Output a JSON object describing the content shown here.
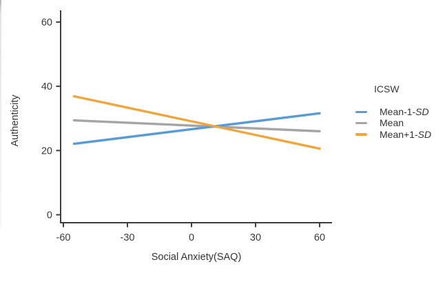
{
  "figure": {
    "x_axis_label": "Social Anxiety(SAQ)",
    "y_axis_label": "Authenticity"
  },
  "legend": {
    "title": "ICSW"
  },
  "colors": {
    "axis": "#3d3d3d",
    "text": "#333333",
    "blue": "#5B9BD5",
    "gray": "#A5A5A5",
    "orange": "#EFA63C"
  },
  "chart_data": {
    "type": "line",
    "title": "",
    "xlabel": "Social Anxiety(SAQ)",
    "ylabel": "Authenticity",
    "xlim": [
      -60,
      66
    ],
    "ylim": [
      0,
      62
    ],
    "x_ticks": [
      -60,
      -30,
      0,
      30,
      60
    ],
    "y_ticks": [
      0,
      20,
      40,
      60
    ],
    "grid": false,
    "legend_title": "ICSW",
    "legend_position": "right",
    "note": "Three straight interaction lines crossing near x=11, y=27.5",
    "series": [
      {
        "name": "Mean-1-SD",
        "label_prefix": "Mean-1-",
        "label_italic": "SD",
        "color": "#5B9BD5",
        "x": [
          -55,
          60
        ],
        "y": [
          22.1,
          31.6
        ],
        "z_order": 2
      },
      {
        "name": "Mean",
        "label_prefix": "Mean",
        "label_italic": "",
        "color": "#A5A5A5",
        "x": [
          -55,
          60
        ],
        "y": [
          29.4,
          26.0
        ],
        "z_order": 1
      },
      {
        "name": "Mean+1-SD",
        "label_prefix": "Mean+1-",
        "label_italic": "SD",
        "color": "#EFA63C",
        "x": [
          -55,
          60
        ],
        "y": [
          36.9,
          20.6
        ],
        "z_order": 3
      }
    ]
  }
}
